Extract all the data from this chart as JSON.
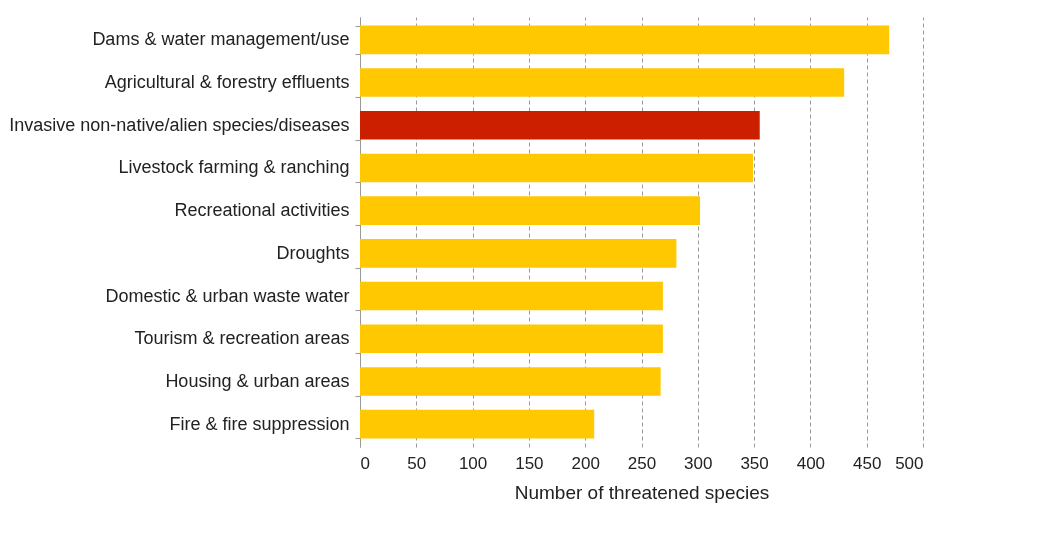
{
  "chart_data": {
    "type": "bar",
    "orientation": "horizontal",
    "xlabel": "Number of threatened species",
    "categories": [
      "Dams & water management/use",
      "Agricultural & forestry effluents",
      "Invasive non-native/alien species/diseases",
      "Livestock farming & ranching",
      "Recreational activities",
      "Droughts",
      "Domestic & urban waste water",
      "Tourism & recreation areas",
      "Housing & urban areas",
      "Fire & fire suppression"
    ],
    "values": [
      470,
      430,
      355,
      349,
      302,
      281,
      269,
      269,
      267,
      208
    ],
    "colors": [
      "#ffc800",
      "#ffc800",
      "#cc1f00",
      "#ffc800",
      "#ffc800",
      "#ffc800",
      "#ffc800",
      "#ffc800",
      "#ffc800",
      "#ffc800"
    ],
    "xlim": [
      0,
      500
    ],
    "xticks": [
      0,
      50,
      100,
      150,
      200,
      250,
      300,
      350,
      400,
      450,
      500
    ],
    "grid": "x",
    "legend": false
  }
}
